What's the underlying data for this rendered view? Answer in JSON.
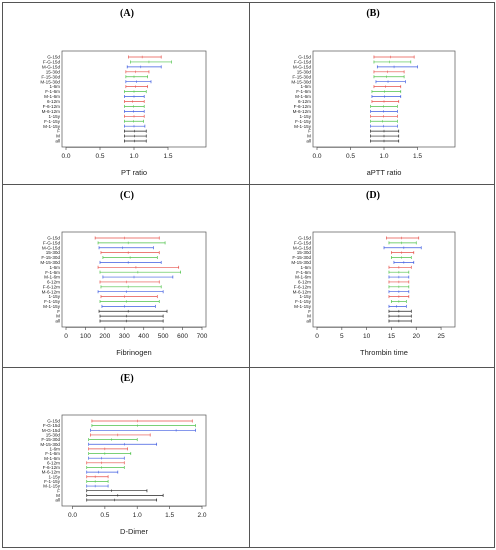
{
  "categories": [
    "G-15d",
    "F-G-15d",
    "M-G-15d",
    "15-30d",
    "F-15-30d",
    "M-15-30d",
    "1-6m",
    "F-1-6m",
    "M-1-6m",
    "6-12m",
    "F-6-12m",
    "M-6-12m",
    "1-15y",
    "F-1-15y",
    "M-1-15y",
    "F",
    "M",
    "all"
  ],
  "series_colors": [
    "#e6504a",
    "#4fc24a",
    "#3d5be0",
    "#e6504a",
    "#4fc24a",
    "#3d5be0",
    "#e6504a",
    "#4fc24a",
    "#3d5be0",
    "#e6504a",
    "#4fc24a",
    "#3d5be0",
    "#e6504a",
    "#4fc24a",
    "#3d5be0",
    "#222222",
    "#222222",
    "#222222"
  ],
  "chart_data": [
    {
      "panel_label": "(A)",
      "type": "interval",
      "title": "",
      "xlabel": "PT ratio",
      "ylabel": "",
      "xlim": [
        0,
        2
      ],
      "xticks": [
        0.0,
        0.5,
        1.0,
        1.5
      ],
      "tick_labels": [
        "0.0",
        "0.5",
        "1.0",
        "1.5"
      ],
      "lower": [
        0.92,
        0.95,
        0.9,
        0.88,
        0.88,
        0.88,
        0.88,
        0.86,
        0.86,
        0.86,
        0.86,
        0.86,
        0.86,
        0.86,
        0.86,
        0.86,
        0.86,
        0.86
      ],
      "upper": [
        1.4,
        1.55,
        1.4,
        1.22,
        1.2,
        1.25,
        1.2,
        1.18,
        1.15,
        1.15,
        1.15,
        1.15,
        1.15,
        1.14,
        1.16,
        1.18,
        1.18,
        1.18
      ],
      "center": [
        1.12,
        1.22,
        1.1,
        1.02,
        1.0,
        1.04,
        1.02,
        1.0,
        1.0,
        0.98,
        0.99,
        0.99,
        1.0,
        0.99,
        1.0,
        1.01,
        1.01,
        1.01
      ]
    },
    {
      "panel_label": "(B)",
      "type": "interval",
      "title": "",
      "xlabel": "aPTT ratio",
      "ylabel": "",
      "xlim": [
        0,
        2
      ],
      "xticks": [
        0.0,
        0.5,
        1.0,
        1.5
      ],
      "tick_labels": [
        "0.0",
        "0.5",
        "1.0",
        "1.5"
      ],
      "lower": [
        0.85,
        0.85,
        0.9,
        0.85,
        0.85,
        0.88,
        0.85,
        0.82,
        0.82,
        0.82,
        0.8,
        0.8,
        0.8,
        0.8,
        0.8,
        0.8,
        0.8,
        0.8
      ],
      "upper": [
        1.45,
        1.4,
        1.5,
        1.3,
        1.3,
        1.32,
        1.25,
        1.25,
        1.25,
        1.22,
        1.2,
        1.2,
        1.2,
        1.2,
        1.2,
        1.22,
        1.22,
        1.22
      ],
      "center": [
        1.1,
        1.08,
        1.15,
        1.05,
        1.04,
        1.06,
        1.02,
        1.01,
        1.01,
        1.0,
        0.99,
        0.99,
        0.99,
        0.98,
        0.99,
        1.0,
        1.0,
        1.0
      ]
    },
    {
      "panel_label": "(C)",
      "type": "interval",
      "title": "",
      "xlabel": "Fibrinogen",
      "ylabel": "",
      "xlim": [
        0,
        700
      ],
      "xticks": [
        0,
        100,
        200,
        300,
        400,
        500,
        600,
        700
      ],
      "tick_labels": [
        "0",
        "100",
        "200",
        "300",
        "400",
        "500",
        "600",
        "700"
      ],
      "lower": [
        150,
        165,
        170,
        180,
        190,
        175,
        165,
        175,
        190,
        175,
        180,
        165,
        180,
        175,
        185,
        170,
        175,
        175
      ],
      "upper": [
        480,
        510,
        450,
        480,
        470,
        490,
        580,
        590,
        550,
        480,
        490,
        500,
        470,
        480,
        460,
        520,
        500,
        500
      ],
      "center": [
        300,
        320,
        290,
        320,
        330,
        320,
        360,
        370,
        350,
        310,
        320,
        310,
        300,
        310,
        300,
        320,
        310,
        310
      ]
    },
    {
      "panel_label": "(D)",
      "type": "interval",
      "title": "",
      "xlabel": "Thrombin time",
      "ylabel": "",
      "xlim": [
        0,
        27
      ],
      "xticks": [
        0,
        5,
        10,
        15,
        20,
        25
      ],
      "tick_labels": [
        "0",
        "5",
        "10",
        "15",
        "20",
        "25"
      ],
      "lower": [
        14.0,
        14.5,
        13.5,
        15.0,
        15.0,
        15.5,
        14.5,
        14.5,
        14.5,
        14.5,
        14.5,
        14.5,
        14.5,
        15.0,
        14.5,
        14.5,
        14.5,
        14.5
      ],
      "upper": [
        20.5,
        20.0,
        21.0,
        19.5,
        19.0,
        19.5,
        19.0,
        18.5,
        18.5,
        18.5,
        18.5,
        18.5,
        18.5,
        18.0,
        18.0,
        19.0,
        19.0,
        19.0
      ],
      "center": [
        17.0,
        17.0,
        17.5,
        17.0,
        17.0,
        17.5,
        16.5,
        16.5,
        16.5,
        16.5,
        16.5,
        16.5,
        16.5,
        16.5,
        16.0,
        16.5,
        16.5,
        16.5
      ]
    },
    {
      "panel_label": "(E)",
      "type": "interval",
      "title": "",
      "xlabel": "D-Dimer",
      "ylabel": "",
      "xlim": [
        -0.1,
        2.0
      ],
      "xticks": [
        0.0,
        0.5,
        1.0,
        1.5,
        2.0
      ],
      "tick_labels": [
        "0.0",
        "0.5",
        "1.0",
        "1.5",
        "2.0"
      ],
      "lower": [
        0.3,
        0.3,
        0.28,
        0.28,
        0.25,
        0.25,
        0.25,
        0.25,
        0.25,
        0.22,
        0.22,
        0.22,
        0.22,
        0.22,
        0.22,
        0.22,
        0.22,
        0.22
      ],
      "upper": [
        1.85,
        1.9,
        1.9,
        1.2,
        1.0,
        1.3,
        0.85,
        0.9,
        0.8,
        0.8,
        0.8,
        0.7,
        0.55,
        0.55,
        0.55,
        1.15,
        1.4,
        1.3
      ],
      "center": [
        1.0,
        1.0,
        1.6,
        0.7,
        0.6,
        0.8,
        0.5,
        0.5,
        0.45,
        0.45,
        0.45,
        0.4,
        0.35,
        0.35,
        0.35,
        0.6,
        0.7,
        0.65
      ]
    }
  ]
}
